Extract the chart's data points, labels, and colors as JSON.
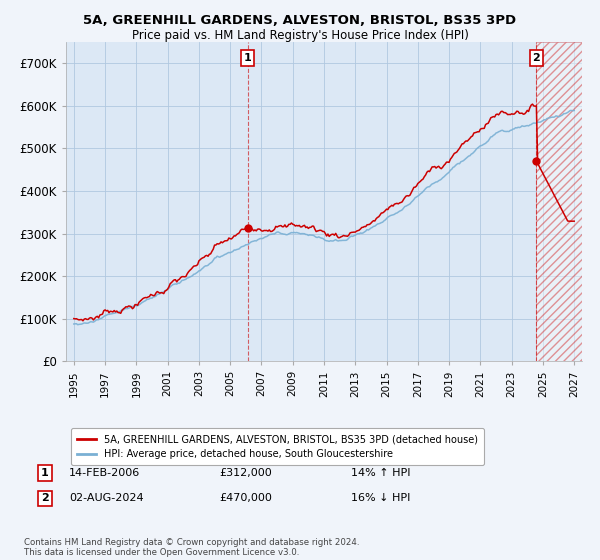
{
  "title_line1": "5A, GREENHILL GARDENS, ALVESTON, BRISTOL, BS35 3PD",
  "title_line2": "Price paid vs. HM Land Registry's House Price Index (HPI)",
  "ylim": [
    0,
    750000
  ],
  "yticks": [
    0,
    100000,
    200000,
    300000,
    400000,
    500000,
    600000,
    700000
  ],
  "ytick_labels": [
    "£0",
    "£100K",
    "£200K",
    "£300K",
    "£400K",
    "£500K",
    "£600K",
    "£700K"
  ],
  "hpi_color": "#7ab0d4",
  "price_color": "#cc0000",
  "point1_x": 2006.12,
  "point1_price": 312000,
  "point1_date": "14-FEB-2006",
  "point1_hpi_pct": "14% ↑ HPI",
  "point2_x": 2024.59,
  "point2_price": 470000,
  "point2_date": "02-AUG-2024",
  "point2_hpi_pct": "16% ↓ HPI",
  "legend_label1": "5A, GREENHILL GARDENS, ALVESTON, BRISTOL, BS35 3PD (detached house)",
  "legend_label2": "HPI: Average price, detached house, South Gloucestershire",
  "footnote": "Contains HM Land Registry data © Crown copyright and database right 2024.\nThis data is licensed under the Open Government Licence v3.0.",
  "background_color": "#f0f4fa",
  "plot_bg_color": "#dce8f5",
  "grid_color": "#b0c8e0",
  "hatch_color": "#cc0000",
  "xlim_left": 1994.5,
  "xlim_right": 2027.5,
  "xtick_years": [
    1995,
    1997,
    1999,
    2001,
    2003,
    2005,
    2007,
    2009,
    2011,
    2013,
    2015,
    2017,
    2019,
    2021,
    2023,
    2025,
    2027
  ]
}
